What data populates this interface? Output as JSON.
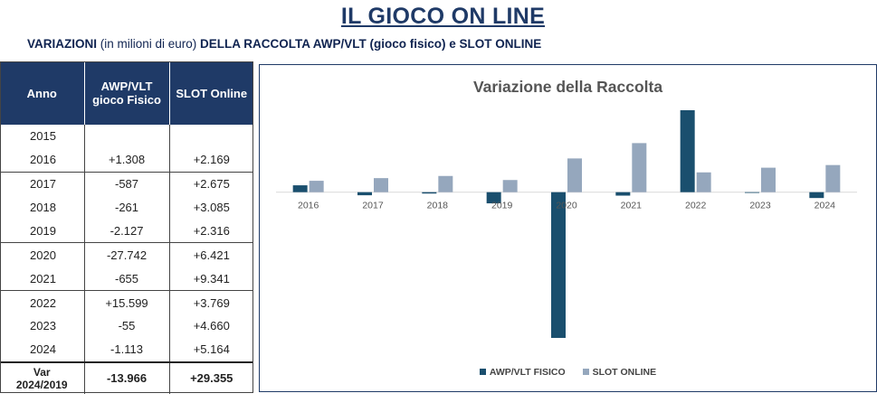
{
  "title": "IL GIOCO ON LINE",
  "subtitle": {
    "part1": "VARIAZIONI",
    "part2": " (in milioni di euro) ",
    "part3": "DELLA RACCOLTA AWP/VLT (gioco fisico) e SLOT ONLINE"
  },
  "table": {
    "headers": [
      "Anno",
      "AWP/VLT gioco Fisico",
      "SLOT Online"
    ],
    "rows": [
      {
        "year": "2015",
        "awp": "",
        "slot": ""
      },
      {
        "year": "2016",
        "awp": "+1.308",
        "slot": "+2.169"
      },
      {
        "year": "2017",
        "awp": "-587",
        "slot": "+2.675"
      },
      {
        "year": "2018",
        "awp": "-261",
        "slot": "+3.085"
      },
      {
        "year": "2019",
        "awp": "-2.127",
        "slot": "+2.316"
      },
      {
        "year": "2020",
        "awp": "-27.742",
        "slot": "+6.421"
      },
      {
        "year": "2021",
        "awp": "-655",
        "slot": "+9.341"
      },
      {
        "year": "2022",
        "awp": "+15.599",
        "slot": "+3.769"
      },
      {
        "year": "2023",
        "awp": "-55",
        "slot": "+4.660"
      },
      {
        "year": "2024",
        "awp": "-1.113",
        "slot": "+5.164"
      }
    ],
    "var": {
      "label_line1": "Var",
      "label_line2": "2024/2019",
      "awp": "-13.966",
      "slot": "+29.355"
    }
  },
  "colors": {
    "header_bg": "#1f3a67",
    "awp": "#1a4f6e",
    "slot": "#95a7bd",
    "negative_total": "#e21e1e"
  },
  "chart_data": {
    "type": "bar",
    "title": "Variazione della Raccolta",
    "categories": [
      "2016",
      "2017",
      "2018",
      "2019",
      "2020",
      "2021",
      "2022",
      "2023",
      "2024"
    ],
    "series": [
      {
        "name": "AWP/VLT FISICO",
        "values": [
          1308,
          -587,
          -261,
          -2127,
          -27742,
          -655,
          15599,
          -55,
          -1113
        ]
      },
      {
        "name": "SLOT ONLINE",
        "values": [
          2169,
          2675,
          3085,
          2316,
          6421,
          9341,
          3769,
          4660,
          5164
        ]
      }
    ],
    "ylim": [
      -27742,
      15599
    ],
    "legend": "bottom",
    "grid": false
  }
}
